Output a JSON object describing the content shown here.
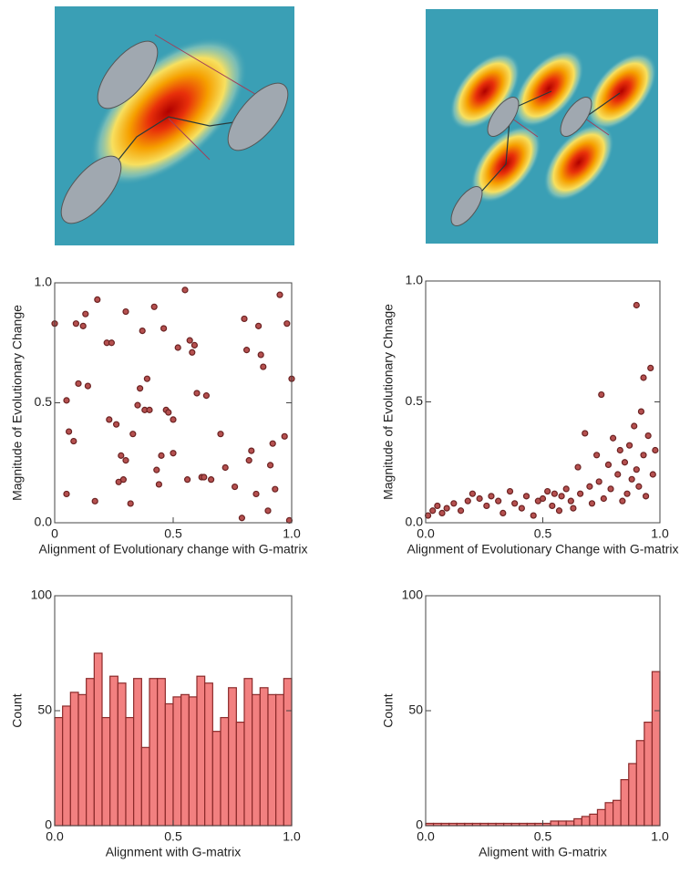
{
  "chart_data": [
    {
      "type": "scatter",
      "xlabel": "Alignment of Evolutionary change with G-matrix",
      "ylabel": "Magnitude of Evolutionary Change",
      "color": "#b5504f",
      "edge": "#6b2222",
      "xlim": [
        0,
        1
      ],
      "ylim": [
        0,
        1
      ],
      "xticks": [
        0,
        0.5,
        {
          "value": 1,
          "label": "1.0"
        }
      ],
      "yticks": [
        {
          "value": 0,
          "label": "0.0"
        },
        0.5,
        {
          "value": 1,
          "label": "1.0"
        }
      ],
      "x": [
        0.0,
        0.05,
        0.06,
        0.08,
        0.09,
        0.1,
        0.12,
        0.13,
        0.14,
        0.17,
        0.18,
        0.22,
        0.23,
        0.26,
        0.27,
        0.28,
        0.29,
        0.3,
        0.3,
        0.32,
        0.33,
        0.35,
        0.36,
        0.37,
        0.38,
        0.39,
        0.4,
        0.43,
        0.44,
        0.45,
        0.46,
        0.47,
        0.48,
        0.5,
        0.5,
        0.52,
        0.55,
        0.56,
        0.57,
        0.58,
        0.59,
        0.6,
        0.62,
        0.64,
        0.66,
        0.7,
        0.72,
        0.76,
        0.79,
        0.8,
        0.81,
        0.82,
        0.83,
        0.85,
        0.86,
        0.87,
        0.88,
        0.9,
        0.92,
        0.93,
        0.95,
        0.97,
        0.98,
        0.99,
        1.0,
        0.05,
        0.24,
        0.42,
        0.63,
        0.91
      ],
      "values": [
        0.83,
        0.51,
        0.38,
        0.34,
        0.83,
        0.58,
        0.82,
        0.87,
        0.57,
        0.09,
        0.93,
        0.75,
        0.43,
        0.41,
        0.17,
        0.28,
        0.18,
        0.88,
        0.26,
        0.08,
        0.37,
        0.49,
        0.56,
        0.8,
        0.47,
        0.6,
        0.47,
        0.22,
        0.16,
        0.28,
        0.81,
        0.47,
        0.46,
        0.43,
        0.29,
        0.73,
        0.97,
        0.18,
        0.76,
        0.71,
        0.74,
        0.54,
        0.19,
        0.53,
        0.18,
        0.37,
        0.23,
        0.15,
        0.02,
        0.85,
        0.72,
        0.26,
        0.3,
        0.12,
        0.82,
        0.7,
        0.65,
        0.05,
        0.33,
        0.14,
        0.95,
        0.36,
        0.83,
        0.01,
        0.6,
        0.12,
        0.75,
        0.9,
        0.19,
        0.24
      ]
    },
    {
      "type": "scatter",
      "xlabel": "Alignment of Evolutionary Change  with G-matrix",
      "ylabel": "Magnitude of Evolutionary Chnage",
      "color": "#b5504f",
      "edge": "#6b2222",
      "xlim": [
        0,
        1
      ],
      "ylim": [
        0,
        1
      ],
      "xticks": [
        {
          "value": 0,
          "label": "0.0"
        },
        0.5,
        {
          "value": 1,
          "label": "1.0"
        }
      ],
      "yticks": [
        {
          "value": 0,
          "label": "0.0"
        },
        0.5,
        {
          "value": 1,
          "label": "1.0"
        }
      ],
      "x": [
        0.01,
        0.03,
        0.05,
        0.07,
        0.09,
        0.12,
        0.15,
        0.18,
        0.2,
        0.23,
        0.26,
        0.28,
        0.31,
        0.33,
        0.36,
        0.38,
        0.41,
        0.43,
        0.46,
        0.48,
        0.5,
        0.52,
        0.54,
        0.55,
        0.57,
        0.58,
        0.6,
        0.62,
        0.63,
        0.65,
        0.66,
        0.68,
        0.7,
        0.71,
        0.73,
        0.74,
        0.75,
        0.76,
        0.78,
        0.79,
        0.8,
        0.82,
        0.83,
        0.84,
        0.85,
        0.86,
        0.87,
        0.88,
        0.89,
        0.9,
        0.9,
        0.91,
        0.92,
        0.93,
        0.93,
        0.94,
        0.95,
        0.96,
        0.97,
        0.98
      ],
      "values": [
        0.03,
        0.05,
        0.07,
        0.04,
        0.06,
        0.08,
        0.05,
        0.09,
        0.12,
        0.1,
        0.07,
        0.11,
        0.09,
        0.04,
        0.13,
        0.08,
        0.06,
        0.11,
        0.03,
        0.09,
        0.1,
        0.13,
        0.07,
        0.12,
        0.05,
        0.11,
        0.14,
        0.09,
        0.06,
        0.23,
        0.12,
        0.37,
        0.15,
        0.08,
        0.28,
        0.17,
        0.53,
        0.1,
        0.24,
        0.14,
        0.35,
        0.2,
        0.3,
        0.09,
        0.25,
        0.12,
        0.32,
        0.18,
        0.4,
        0.9,
        0.22,
        0.15,
        0.46,
        0.28,
        0.6,
        0.11,
        0.36,
        0.64,
        0.2,
        0.3
      ]
    },
    {
      "type": "histogram",
      "xlabel": "Alignment with G-matrix",
      "ylabel": "Count",
      "color": "#f28080",
      "edge": "#8b2a2a",
      "xlim": [
        0,
        1
      ],
      "ylim": [
        0,
        100
      ],
      "xticks": [
        {
          "value": 0,
          "label": "0.0"
        },
        0.5,
        {
          "value": 1,
          "label": "1.0"
        }
      ],
      "yticks": [
        0,
        50,
        100
      ],
      "bins": [
        0,
        0.0333,
        0.0667,
        0.1,
        0.1333,
        0.1667,
        0.2,
        0.2333,
        0.2667,
        0.3,
        0.3333,
        0.3667,
        0.4,
        0.4333,
        0.4667,
        0.5,
        0.5333,
        0.5667,
        0.6,
        0.6333,
        0.6667,
        0.7,
        0.7333,
        0.7667,
        0.8,
        0.8333,
        0.8667,
        0.9,
        0.9333,
        0.9667,
        1
      ],
      "values": [
        47,
        52,
        58,
        57,
        64,
        75,
        47,
        65,
        62,
        47,
        64,
        34,
        64,
        64,
        53,
        56,
        57,
        56,
        65,
        62,
        41,
        47,
        60,
        45,
        64,
        57,
        60,
        57,
        57,
        64
      ]
    },
    {
      "type": "histogram",
      "xlabel": "Aligment with G-matrix",
      "ylabel": "Count",
      "color": "#f28080",
      "edge": "#8b2a2a",
      "xlim": [
        0,
        1
      ],
      "ylim": [
        0,
        100
      ],
      "xticks": [
        {
          "value": 0,
          "label": "0.0"
        },
        0.5,
        {
          "value": 1,
          "label": "1.0"
        }
      ],
      "yticks": [
        0,
        50,
        100
      ],
      "bins": [
        0,
        0.0333,
        0.0667,
        0.1,
        0.1333,
        0.1667,
        0.2,
        0.2333,
        0.2667,
        0.3,
        0.3333,
        0.3667,
        0.4,
        0.4333,
        0.4667,
        0.5,
        0.5333,
        0.5667,
        0.6,
        0.6333,
        0.6667,
        0.7,
        0.7333,
        0.7667,
        0.8,
        0.8333,
        0.8667,
        0.9,
        0.9333,
        0.9667,
        1
      ],
      "values": [
        1,
        1,
        1,
        1,
        1,
        1,
        1,
        1,
        1,
        1,
        1,
        1,
        1,
        1,
        1,
        1,
        2,
        2,
        2,
        3,
        4,
        5,
        7,
        10,
        11,
        20,
        27,
        37,
        45,
        67
      ]
    }
  ]
}
